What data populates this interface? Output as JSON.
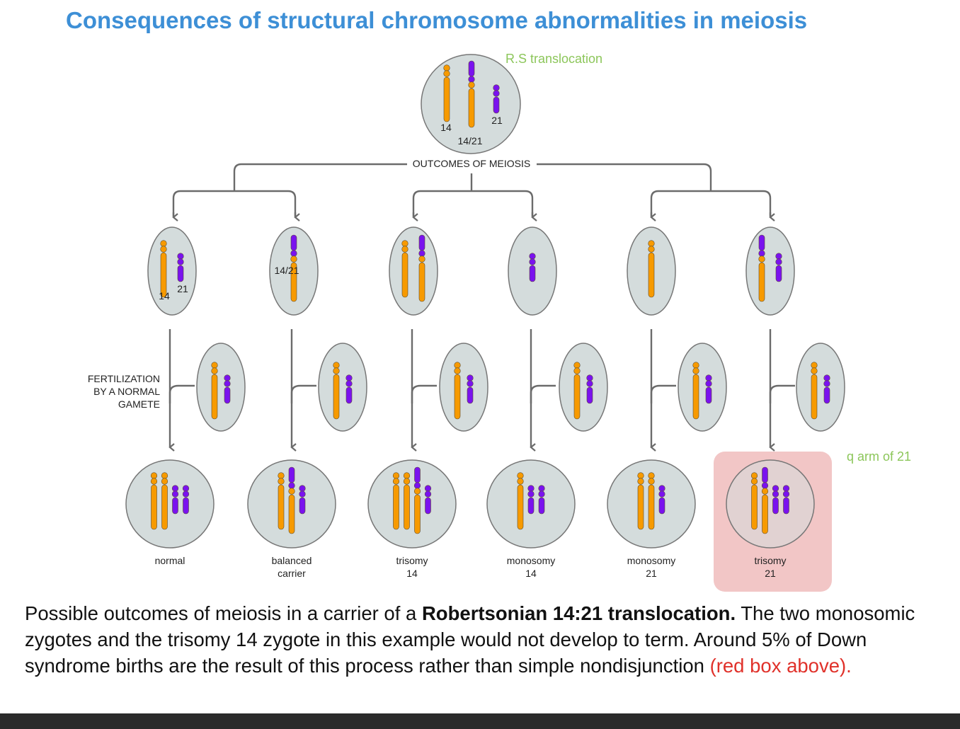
{
  "title": "Consequences of structural chromosome abnormalities in meiosis",
  "annotations": {
    "rs_translocation": "R.S translocation",
    "q_arm": "q arm of 21"
  },
  "outcomes_label": "OUTCOMES OF MEIOSIS",
  "fertilization_label": [
    "FERTILIZATION",
    "BY A NORMAL",
    "GAMETE"
  ],
  "colors": {
    "chr14": "#f79a00",
    "chr21": "#7a12ee",
    "cell": "#d4dcdc",
    "highlight": "#e9a0a0",
    "annotation": "#8cc65a",
    "title": "#3d8fd6"
  },
  "parent_cell": {
    "chromosomes": [
      "14",
      "t",
      "21"
    ],
    "labels": [
      "14",
      "14/21",
      "21"
    ]
  },
  "gametes": [
    {
      "chromosomes": [
        "14",
        "21"
      ],
      "labels": [
        "14",
        "21"
      ]
    },
    {
      "chromosomes": [
        "t"
      ],
      "labels": [
        "14/21"
      ]
    },
    {
      "chromosomes": [
        "14",
        "t"
      ],
      "labels": []
    },
    {
      "chromosomes": [
        "21"
      ],
      "labels": []
    },
    {
      "chromosomes": [
        "14"
      ],
      "labels": []
    },
    {
      "chromosomes": [
        "t",
        "21"
      ],
      "labels": []
    }
  ],
  "normal_gamete": {
    "chromosomes": [
      "14",
      "21"
    ]
  },
  "zygotes": [
    {
      "label": [
        "normal",
        ""
      ],
      "chromosomes": [
        "14",
        "14",
        "21",
        "21"
      ],
      "highlighted": false
    },
    {
      "label": [
        "balanced",
        "carrier"
      ],
      "chromosomes": [
        "14",
        "t",
        "21"
      ],
      "highlighted": false
    },
    {
      "label": [
        "trisomy",
        "14"
      ],
      "chromosomes": [
        "14",
        "14",
        "t",
        "21"
      ],
      "highlighted": false
    },
    {
      "label": [
        "monosomy",
        "14"
      ],
      "chromosomes": [
        "14",
        "21",
        "21"
      ],
      "highlighted": false
    },
    {
      "label": [
        "monosomy",
        "21"
      ],
      "chromosomes": [
        "14",
        "14",
        "21"
      ],
      "highlighted": false
    },
    {
      "label": [
        "trisomy",
        "21"
      ],
      "chromosomes": [
        "14",
        "t",
        "21",
        "21"
      ],
      "highlighted": true
    }
  ],
  "caption": {
    "part1": "Possible outcomes of meiosis in a carrier of a ",
    "bold": "Robertsonian 14:21 translocation.",
    "part2": " The two monosomic zygotes and the trisomy 14 zygote in this example would not develop to term. Around 5% of Down syndrome births are the result of this process rather than simple nondisjunction ",
    "red": "(red box above)."
  }
}
